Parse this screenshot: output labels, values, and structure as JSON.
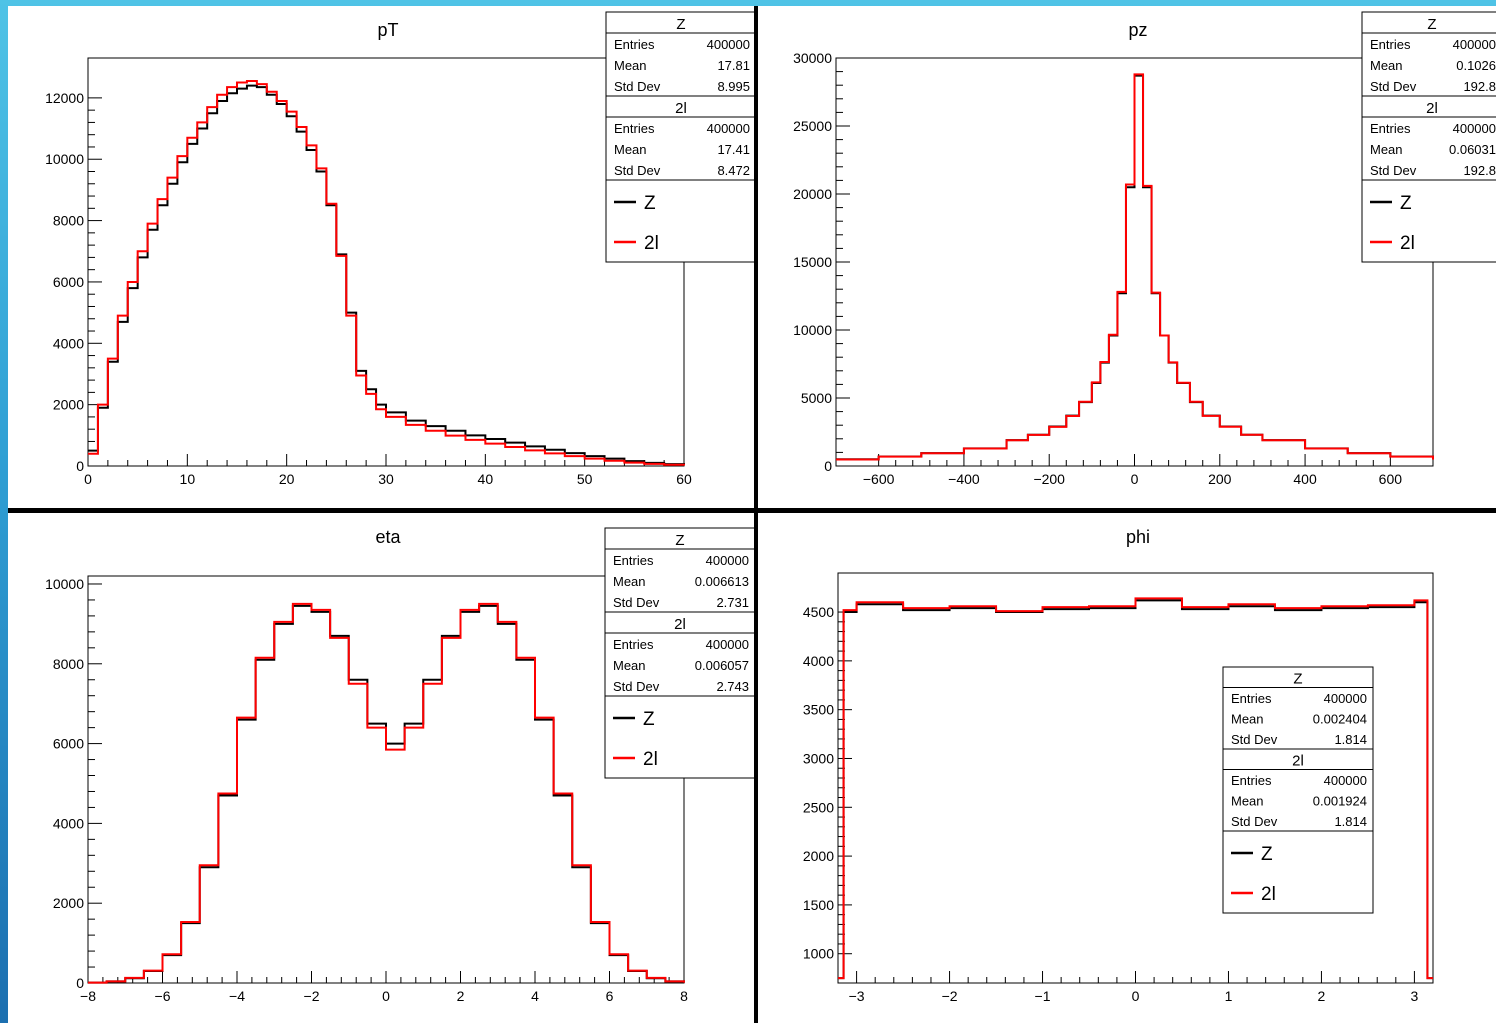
{
  "colors": {
    "series_z": "#000000",
    "series_2l": "#ff0000",
    "stats_box_border": "#000000"
  },
  "chart_data": [
    {
      "type": "line",
      "title": "pT",
      "xlim": [
        0,
        60
      ],
      "ylim": [
        0,
        13300
      ],
      "xticks": [
        0,
        10,
        20,
        30,
        40,
        50,
        60
      ],
      "yticks": [
        0,
        2000,
        4000,
        6000,
        8000,
        10000,
        12000
      ],
      "stats": [
        {
          "name": "Z",
          "entries": "400000",
          "mean": "17.81",
          "std": "8.995"
        },
        {
          "name": "2l",
          "entries": "400000",
          "mean": "17.41",
          "std": "8.472"
        }
      ],
      "legend": [
        "Z",
        "2l"
      ],
      "legend_position": "top-right",
      "series": [
        {
          "name": "Z",
          "x": [
            0,
            1,
            2,
            3,
            4,
            5,
            6,
            7,
            8,
            9,
            10,
            11,
            12,
            13,
            14,
            15,
            16,
            17,
            18,
            19,
            20,
            21,
            22,
            23,
            24,
            25,
            26,
            27,
            28,
            29,
            30,
            32,
            34,
            36,
            38,
            40,
            42,
            44,
            46,
            48,
            50,
            52,
            54,
            56,
            58,
            60
          ],
          "y": [
            500,
            1900,
            3400,
            4700,
            5800,
            6800,
            7700,
            8500,
            9200,
            9900,
            10500,
            11000,
            11500,
            11900,
            12150,
            12300,
            12400,
            12350,
            12100,
            11800,
            11400,
            10900,
            10300,
            9600,
            8500,
            6900,
            5000,
            3100,
            2500,
            2000,
            1750,
            1480,
            1300,
            1150,
            1000,
            880,
            760,
            640,
            530,
            420,
            320,
            240,
            160,
            100,
            60,
            30
          ]
        },
        {
          "name": "2l",
          "x": [
            0,
            1,
            2,
            3,
            4,
            5,
            6,
            7,
            8,
            9,
            10,
            11,
            12,
            13,
            14,
            15,
            16,
            17,
            18,
            19,
            20,
            21,
            22,
            23,
            24,
            25,
            26,
            27,
            28,
            29,
            30,
            32,
            34,
            36,
            38,
            40,
            42,
            44,
            46,
            48,
            50,
            52,
            54,
            56,
            58,
            60
          ],
          "y": [
            400,
            2000,
            3500,
            4900,
            6000,
            7000,
            7900,
            8700,
            9400,
            10100,
            10700,
            11200,
            11700,
            12100,
            12350,
            12500,
            12550,
            12450,
            12200,
            11900,
            11550,
            11050,
            10450,
            9700,
            8550,
            6850,
            4900,
            2950,
            2350,
            1850,
            1600,
            1340,
            1150,
            990,
            850,
            730,
            620,
            510,
            410,
            320,
            240,
            170,
            110,
            70,
            40,
            20
          ]
        }
      ]
    },
    {
      "type": "line",
      "title": "pz",
      "xlim": [
        -700,
        700
      ],
      "ylim": [
        0,
        30000
      ],
      "xticks": [
        -600,
        -400,
        -200,
        0,
        200,
        400,
        600
      ],
      "yticks": [
        0,
        5000,
        10000,
        15000,
        20000,
        25000,
        30000
      ],
      "stats": [
        {
          "name": "Z",
          "entries": "400000",
          "mean": "0.1026",
          "std": "192.8"
        },
        {
          "name": "2l",
          "entries": "400000",
          "mean": "0.06031",
          "std": "192.8"
        }
      ],
      "legend": [
        "Z",
        "2l"
      ],
      "legend_position": "top-right",
      "series": [
        {
          "name": "Z",
          "x": [
            -700,
            -600,
            -500,
            -400,
            -300,
            -250,
            -200,
            -160,
            -130,
            -100,
            -80,
            -60,
            -40,
            -20,
            0,
            20,
            40,
            60,
            80,
            100,
            130,
            160,
            200,
            250,
            300,
            400,
            500,
            600,
            700
          ],
          "y": [
            500,
            700,
            950,
            1300,
            1900,
            2300,
            2900,
            3700,
            4700,
            6100,
            7600,
            9600,
            12700,
            20500,
            28700,
            20500,
            12700,
            9600,
            7600,
            6100,
            4700,
            3700,
            2900,
            2300,
            1900,
            1300,
            950,
            700,
            500
          ]
        },
        {
          "name": "2l",
          "x": [
            -700,
            -600,
            -500,
            -400,
            -300,
            -250,
            -200,
            -160,
            -130,
            -100,
            -80,
            -60,
            -40,
            -20,
            0,
            20,
            40,
            60,
            80,
            100,
            130,
            160,
            200,
            250,
            300,
            400,
            500,
            600,
            700
          ],
          "y": [
            480,
            690,
            940,
            1290,
            1890,
            2290,
            2880,
            3680,
            4720,
            6150,
            7650,
            9650,
            12800,
            20700,
            28800,
            20600,
            12750,
            9600,
            7620,
            6120,
            4720,
            3690,
            2890,
            2300,
            1890,
            1290,
            940,
            690,
            480
          ]
        }
      ]
    },
    {
      "type": "line",
      "title": "eta",
      "xlim": [
        -8,
        8
      ],
      "ylim": [
        0,
        10200
      ],
      "xticks": [
        -8,
        -6,
        -4,
        -2,
        0,
        2,
        4,
        6,
        8
      ],
      "yticks": [
        0,
        2000,
        4000,
        6000,
        8000,
        10000
      ],
      "stats": [
        {
          "name": "Z",
          "entries": "400000",
          "mean": "0.006613",
          "std": "2.731"
        },
        {
          "name": "2l",
          "entries": "400000",
          "mean": "0.006057",
          "std": "2.743"
        }
      ],
      "legend": [
        "Z",
        "2l"
      ],
      "legend_position": "top-right",
      "series": [
        {
          "name": "Z",
          "x": [
            -8,
            -7.5,
            -7,
            -6.5,
            -6,
            -5.5,
            -5,
            -4.5,
            -4,
            -3.5,
            -3,
            -2.5,
            -2,
            -1.5,
            -1,
            -0.5,
            0,
            0.5,
            1,
            1.5,
            2,
            2.5,
            3,
            3.5,
            4,
            4.5,
            5,
            5.5,
            6,
            6.5,
            7,
            7.5,
            8
          ],
          "y": [
            10,
            40,
            120,
            300,
            700,
            1500,
            2900,
            4700,
            6600,
            8100,
            9000,
            9450,
            9300,
            8700,
            7600,
            6500,
            6000,
            6500,
            7600,
            8700,
            9300,
            9450,
            9000,
            8100,
            6600,
            4700,
            2900,
            1500,
            700,
            300,
            120,
            40,
            10
          ]
        },
        {
          "name": "2l",
          "x": [
            -8,
            -7.5,
            -7,
            -6.5,
            -6,
            -5.5,
            -5,
            -4.5,
            -4,
            -3.5,
            -3,
            -2.5,
            -2,
            -1.5,
            -1,
            -0.5,
            0,
            0.5,
            1,
            1.5,
            2,
            2.5,
            3,
            3.5,
            4,
            4.5,
            5,
            5.5,
            6,
            6.5,
            7,
            7.5,
            8
          ],
          "y": [
            10,
            40,
            130,
            310,
            720,
            1530,
            2950,
            4750,
            6650,
            8150,
            9050,
            9500,
            9350,
            8650,
            7500,
            6400,
            5850,
            6400,
            7500,
            8650,
            9350,
            9500,
            9050,
            8150,
            6650,
            4750,
            2950,
            1530,
            720,
            310,
            130,
            40,
            10
          ]
        }
      ]
    },
    {
      "type": "line",
      "title": "phi",
      "xlim": [
        -3.2,
        3.2
      ],
      "ylim": [
        700,
        4900
      ],
      "xticks": [
        -3,
        -2,
        -1,
        0,
        1,
        2,
        3
      ],
      "yticks": [
        1000,
        1500,
        2000,
        2500,
        3000,
        3500,
        4000,
        4500
      ],
      "stats": [
        {
          "name": "Z",
          "entries": "400000",
          "mean": "0.002404",
          "std": "1.814"
        },
        {
          "name": "2l",
          "entries": "400000",
          "mean": "0.001924",
          "std": "1.814"
        }
      ],
      "legend": [
        "Z",
        "2l"
      ],
      "legend_position": "center-right",
      "series": [
        {
          "name": "Z",
          "x": [
            -3.2,
            -3.14,
            -3.0,
            -2.5,
            -2.0,
            -1.5,
            -1.0,
            -0.5,
            0.0,
            0.5,
            1.0,
            1.5,
            2.0,
            2.5,
            3.0,
            3.14,
            3.2
          ],
          "y": [
            750,
            4500,
            4580,
            4520,
            4540,
            4500,
            4530,
            4540,
            4620,
            4530,
            4560,
            4520,
            4540,
            4550,
            4600,
            750,
            750
          ]
        },
        {
          "name": "2l",
          "x": [
            -3.2,
            -3.14,
            -3.0,
            -2.5,
            -2.0,
            -1.5,
            -1.0,
            -0.5,
            0.0,
            0.5,
            1.0,
            1.5,
            2.0,
            2.5,
            3.0,
            3.14,
            3.2
          ],
          "y": [
            750,
            4520,
            4600,
            4540,
            4560,
            4510,
            4550,
            4560,
            4640,
            4550,
            4580,
            4540,
            4560,
            4570,
            4620,
            750,
            750
          ]
        }
      ]
    }
  ]
}
